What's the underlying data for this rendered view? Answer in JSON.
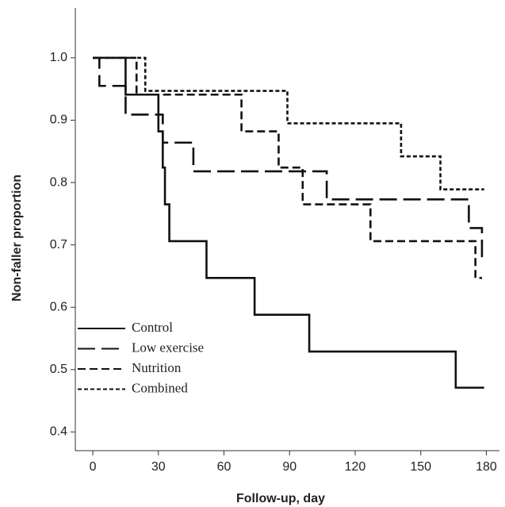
{
  "chart_data": {
    "type": "step",
    "x_label": "Follow-up, day",
    "y_label": "Non-faller proportion",
    "xlim": [
      -8,
      186
    ],
    "xticks": [
      0,
      30,
      60,
      90,
      120,
      150,
      180
    ],
    "ylim": [
      0.37,
      1.08
    ],
    "yticks": [
      {
        "value": 0.4,
        "label": "0.4"
      },
      {
        "value": 0.5,
        "label": "0.5"
      },
      {
        "value": 0.6,
        "label": "0.6"
      },
      {
        "value": 0.7,
        "label": "0.7"
      },
      {
        "value": 0.8,
        "label": "0.8"
      },
      {
        "value": 0.9,
        "label": "0.9"
      },
      {
        "value": 1.0,
        "label": "1.0"
      }
    ],
    "series": [
      {
        "name": "Control",
        "color": "#111111",
        "dash": "none",
        "x": [
          0,
          15,
          30,
          32,
          33,
          35,
          52,
          74,
          99,
          166,
          179
        ],
        "values": [
          1.0,
          0.941,
          0.882,
          0.824,
          0.765,
          0.706,
          0.647,
          0.588,
          0.529,
          0.471,
          0.471
        ]
      },
      {
        "name": "Low exercise",
        "color": "#111111",
        "dash": "22,8",
        "x": [
          0,
          3,
          15,
          32,
          46,
          107,
          172,
          178,
          179
        ],
        "values": [
          1.0,
          0.955,
          0.909,
          0.864,
          0.818,
          0.773,
          0.727,
          0.682,
          0.682
        ]
      },
      {
        "name": "Nutrition",
        "color": "#111111",
        "dash": "10,5",
        "x": [
          0,
          20,
          68,
          85,
          96,
          127,
          175,
          178
        ],
        "values": [
          1.0,
          0.941,
          0.882,
          0.824,
          0.765,
          0.706,
          0.647,
          0.647
        ]
      },
      {
        "name": "Combined",
        "color": "#111111",
        "dash": "5,3",
        "x": [
          0,
          24,
          89,
          141,
          159,
          179
        ],
        "values": [
          1.0,
          0.947,
          0.895,
          0.842,
          0.789,
          0.789
        ]
      }
    ],
    "legend": "lower-left"
  }
}
